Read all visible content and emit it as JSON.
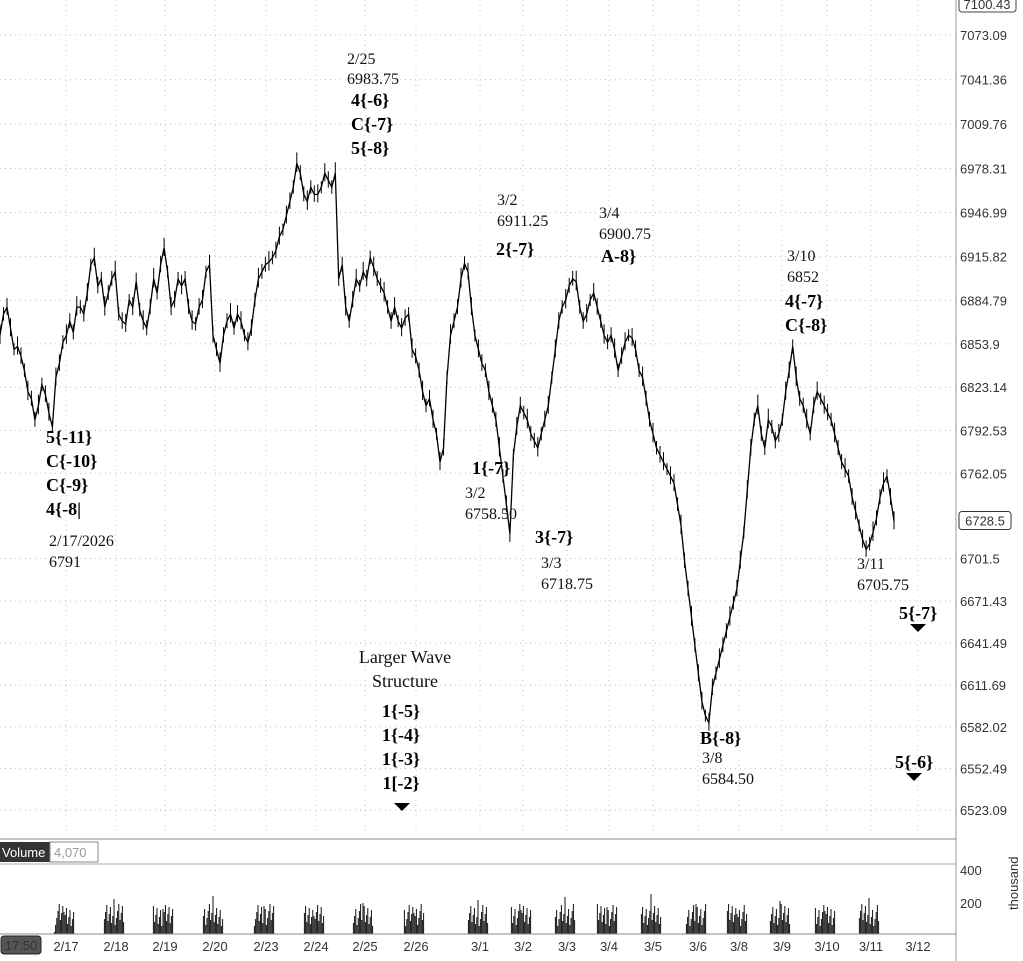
{
  "chart_data": {
    "type": "line",
    "price_axis": {
      "ticks": [
        "7073.09",
        "7041.36",
        "7009.76",
        "6978.31",
        "6946.99",
        "6915.82",
        "6884.79",
        "6853.9",
        "6823.14",
        "6792.53",
        "6762.05",
        "6701.5",
        "6671.43",
        "6641.49",
        "6611.69",
        "6582.02",
        "6552.49",
        "6523.09"
      ],
      "top_badge": "7100.43",
      "last_badge": "6728.5",
      "ylim": [
        6505,
        7108
      ]
    },
    "volume_panel": {
      "label": "Volume",
      "value": "4,070",
      "ticks": [
        "400",
        "200"
      ],
      "unit": "thousand"
    },
    "time_axis": {
      "badge": "17:50",
      "labels": [
        "2/17",
        "2/18",
        "2/19",
        "2/20",
        "2/23",
        "2/24",
        "2/25",
        "2/26",
        "3/1",
        "3/2",
        "3/3",
        "3/4",
        "3/5",
        "3/6",
        "3/8",
        "3/9",
        "3/10",
        "3/11",
        "3/12"
      ]
    },
    "series": [
      {
        "values": [
          6860,
          6875,
          6880,
          6865,
          6850,
          6852,
          6845,
          6835,
          6820,
          6815,
          6800,
          6810,
          6825,
          6818,
          6805,
          6795,
          6830,
          6840,
          6855,
          6860,
          6870,
          6862,
          6880,
          6880,
          6875,
          6890,
          6910,
          6915,
          6895,
          6900,
          6880,
          6890,
          6900,
          6905,
          6875,
          6870,
          6868,
          6885,
          6880,
          6898,
          6878,
          6870,
          6865,
          6880,
          6900,
          6890,
          6910,
          6922,
          6905,
          6880,
          6885,
          6900,
          6895,
          6900,
          6880,
          6870,
          6868,
          6880,
          6885,
          6905,
          6910,
          6860,
          6850,
          6840,
          6860,
          6870,
          6875,
          6865,
          6875,
          6870,
          6860,
          6855,
          6865,
          6885,
          6900,
          6905,
          6910,
          6912,
          6915,
          6920,
          6930,
          6935,
          6945,
          6955,
          6965,
          6982,
          6975,
          6960,
          6955,
          6965,
          6960,
          6960,
          6965,
          6975,
          6970,
          6965,
          6975,
          6900,
          6910,
          6880,
          6870,
          6885,
          6900,
          6895,
          6905,
          6900,
          6915,
          6908,
          6900,
          6895,
          6890,
          6880,
          6870,
          6880,
          6870,
          6865,
          6872,
          6875,
          6850,
          6845,
          6835,
          6820,
          6810,
          6815,
          6800,
          6790,
          6770,
          6780,
          6830,
          6860,
          6870,
          6880,
          6900,
          6911,
          6905,
          6880,
          6860,
          6850,
          6840,
          6835,
          6820,
          6810,
          6800,
          6780,
          6760,
          6740,
          6719,
          6775,
          6795,
          6810,
          6805,
          6800,
          6790,
          6785,
          6780,
          6790,
          6800,
          6810,
          6830,
          6850,
          6870,
          6880,
          6885,
          6895,
          6900,
          6898,
          6880,
          6870,
          6875,
          6885,
          6890,
          6880,
          6870,
          6860,
          6855,
          6860,
          6850,
          6835,
          6845,
          6855,
          6860,
          6858,
          6850,
          6835,
          6830,
          6815,
          6800,
          6790,
          6780,
          6775,
          6770,
          6765,
          6760,
          6755,
          6740,
          6725,
          6700,
          6680,
          6660,
          6640,
          6620,
          6600,
          6590,
          6585,
          6610,
          6620,
          6630,
          6640,
          6650,
          6660,
          6670,
          6680,
          6700,
          6720,
          6750,
          6780,
          6800,
          6810,
          6790,
          6780,
          6800,
          6795,
          6785,
          6790,
          6800,
          6820,
          6835,
          6852,
          6830,
          6815,
          6810,
          6800,
          6790,
          6810,
          6820,
          6815,
          6810,
          6805,
          6800,
          6790,
          6780,
          6770,
          6765,
          6760,
          6745,
          6735,
          6725,
          6715,
          6708,
          6712,
          6720,
          6730,
          6745,
          6755,
          6760,
          6745,
          6728
        ]
      }
    ],
    "annotations": [
      {
        "lines": [
          "5{-11}",
          "C{-10}",
          "C{-9}",
          "4{-8|"
        ],
        "bold": true
      },
      {
        "lines": [
          "2/17/2026",
          "6791"
        ],
        "bold": false
      },
      {
        "lines": [
          "2/25",
          "6983.75"
        ],
        "bold": false
      },
      {
        "lines": [
          "4{-6}",
          "C{-7}",
          "5{-8}"
        ],
        "bold": true
      },
      {
        "lines": [
          "3/2",
          "6911.25"
        ],
        "bold": false
      },
      {
        "lines": [
          "2{-7}"
        ],
        "bold": true
      },
      {
        "lines": [
          "3/4",
          "6900.75"
        ],
        "bold": false
      },
      {
        "lines": [
          "A-8}"
        ],
        "bold": true
      },
      {
        "lines": [
          "3/10",
          "6852"
        ],
        "bold": false
      },
      {
        "lines": [
          "4{-7}",
          "C{-8}"
        ],
        "bold": true
      },
      {
        "lines": [
          "1{-7}"
        ],
        "bold": true
      },
      {
        "lines": [
          "3/2",
          "6758.50"
        ],
        "bold": false
      },
      {
        "lines": [
          "3{-7}"
        ],
        "bold": true
      },
      {
        "lines": [
          "3/3",
          "6718.75"
        ],
        "bold": false
      },
      {
        "lines": [
          "3/11",
          "6705.75"
        ],
        "bold": false
      },
      {
        "lines": [
          "5{-7}"
        ],
        "bold": true
      },
      {
        "lines": [
          "Larger Wave",
          "Structure"
        ],
        "bold": false
      },
      {
        "lines": [
          "1{-5}",
          "1{-4}",
          "1{-3}",
          "1[-2}"
        ],
        "bold": true
      },
      {
        "lines": [
          "B{-8}"
        ],
        "bold": true
      },
      {
        "lines": [
          "3/8",
          "6584.50"
        ],
        "bold": false
      },
      {
        "lines": [
          "5{-6}"
        ],
        "bold": true
      }
    ]
  }
}
